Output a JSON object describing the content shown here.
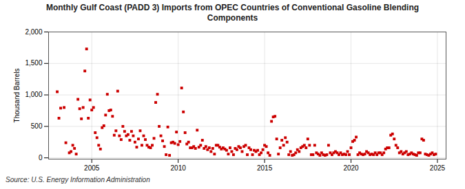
{
  "chart_data": {
    "type": "scatter",
    "title": "Monthly Gulf Coast (PADD 3) Imports from OPEC Countries of Conventional Gasoline Blending\nComponents",
    "ylabel": "Thousand Barrels",
    "source": "Source: U.S. Energy Information Administration",
    "color": "#cc0000",
    "marker": "square",
    "grid": true,
    "xlim": [
      2002.5,
      2025.5
    ],
    "ylim": [
      -20,
      2000
    ],
    "xticks": [
      2005,
      2010,
      2015,
      2020,
      2025
    ],
    "yticks": [
      0,
      500,
      {
        "value": 1000,
        "label": "1,000"
      },
      {
        "value": 1500,
        "label": "1,500"
      },
      {
        "value": 2000,
        "label": "2,000"
      }
    ],
    "x": [
      2003.0,
      2003.1,
      2003.2,
      2003.4,
      2003.5,
      2003.7,
      2003.8,
      2003.9,
      2004.0,
      2004.1,
      2004.2,
      2004.3,
      2004.4,
      2004.5,
      2004.6,
      2004.7,
      2004.8,
      2004.9,
      2005.0,
      2005.1,
      2005.2,
      2005.3,
      2005.4,
      2005.5,
      2005.6,
      2005.7,
      2005.8,
      2005.9,
      2006.0,
      2006.1,
      2006.2,
      2006.3,
      2006.4,
      2006.5,
      2006.6,
      2006.7,
      2006.8,
      2006.9,
      2007.0,
      2007.1,
      2007.2,
      2007.3,
      2007.4,
      2007.5,
      2007.6,
      2007.7,
      2007.8,
      2007.9,
      2008.0,
      2008.1,
      2008.2,
      2008.3,
      2008.4,
      2008.5,
      2008.6,
      2008.7,
      2008.8,
      2008.9,
      2009.0,
      2009.1,
      2009.2,
      2009.3,
      2009.4,
      2009.5,
      2009.6,
      2009.7,
      2009.8,
      2009.9,
      2010.0,
      2010.1,
      2010.2,
      2010.3,
      2010.4,
      2010.5,
      2010.6,
      2010.7,
      2010.8,
      2010.9,
      2011.0,
      2011.1,
      2011.2,
      2011.3,
      2011.4,
      2011.5,
      2011.6,
      2011.7,
      2011.8,
      2011.9,
      2012.0,
      2012.1,
      2012.2,
      2012.3,
      2012.4,
      2012.5,
      2012.6,
      2012.7,
      2012.8,
      2012.9,
      2013.0,
      2013.1,
      2013.2,
      2013.3,
      2013.4,
      2013.5,
      2013.6,
      2013.7,
      2013.8,
      2013.9,
      2014.0,
      2014.1,
      2014.2,
      2014.3,
      2014.4,
      2014.5,
      2014.6,
      2014.7,
      2014.8,
      2014.9,
      2015.0,
      2015.1,
      2015.2,
      2015.3,
      2015.4,
      2015.5,
      2015.6,
      2015.7,
      2015.8,
      2015.9,
      2016.0,
      2016.1,
      2016.2,
      2016.3,
      2016.4,
      2016.5,
      2016.6,
      2016.7,
      2016.8,
      2016.9,
      2017.0,
      2017.1,
      2017.2,
      2017.3,
      2017.4,
      2017.5,
      2017.6,
      2017.7,
      2017.8,
      2017.9,
      2018.0,
      2018.1,
      2018.2,
      2018.3,
      2018.4,
      2018.5,
      2018.6,
      2018.7,
      2018.8,
      2018.9,
      2019.0,
      2019.1,
      2019.2,
      2019.3,
      2019.4,
      2019.5,
      2019.6,
      2019.7,
      2019.8,
      2019.9,
      2020.0,
      2020.1,
      2020.2,
      2020.3,
      2020.4,
      2020.5,
      2020.6,
      2020.7,
      2020.8,
      2020.9,
      2021.0,
      2021.1,
      2021.2,
      2021.3,
      2021.4,
      2021.5,
      2021.6,
      2021.7,
      2021.8,
      2021.9,
      2022.0,
      2022.1,
      2022.2,
      2022.3,
      2022.4,
      2022.5,
      2022.6,
      2022.7,
      2022.8,
      2022.9,
      2023.0,
      2023.1,
      2023.2,
      2023.3,
      2023.4,
      2023.5,
      2023.6,
      2023.7,
      2023.8,
      2023.9,
      2024.0,
      2024.1,
      2024.2,
      2024.3,
      2024.4,
      2024.5,
      2024.6,
      2024.7,
      2024.8,
      2024.9
    ],
    "values": [
      1050,
      630,
      790,
      800,
      240,
      80,
      100,
      200,
      150,
      60,
      930,
      780,
      620,
      800,
      1380,
      1730,
      630,
      920,
      760,
      800,
      400,
      320,
      200,
      140,
      480,
      510,
      680,
      1010,
      750,
      760,
      660,
      360,
      430,
      1060,
      350,
      290,
      500,
      420,
      350,
      370,
      280,
      420,
      350,
      250,
      170,
      300,
      430,
      200,
      350,
      290,
      200,
      170,
      160,
      200,
      310,
      880,
      1010,
      500,
      350,
      270,
      180,
      50,
      490,
      40,
      240,
      250,
      230,
      410,
      210,
      260,
      1110,
      730,
      400,
      220,
      250,
      160,
      160,
      180,
      150,
      440,
      170,
      200,
      280,
      150,
      180,
      130,
      160,
      100,
      150,
      60,
      200,
      200,
      170,
      140,
      160,
      140,
      120,
      60,
      160,
      100,
      50,
      150,
      130,
      180,
      160,
      100,
      180,
      200,
      50,
      160,
      130,
      50,
      120,
      100,
      120,
      50,
      80,
      130,
      200,
      180,
      80,
      40,
      580,
      650,
      660,
      300,
      60,
      160,
      280,
      200,
      320,
      250,
      50,
      100,
      40,
      50,
      80,
      130,
      100,
      160,
      180,
      200,
      160,
      300,
      200,
      50,
      50,
      200,
      80,
      60,
      40,
      80,
      50,
      40,
      50,
      200,
      80,
      50,
      80,
      100,
      80,
      50,
      80,
      50,
      60,
      50,
      100,
      50,
      160,
      260,
      280,
      330,
      50,
      80,
      60,
      50,
      60,
      100,
      80,
      50,
      60,
      50,
      80,
      50,
      80,
      80,
      50,
      80,
      140,
      160,
      160,
      360,
      380,
      300,
      200,
      160,
      80,
      100,
      60,
      80,
      100,
      50,
      60,
      80,
      60,
      50,
      40,
      80,
      80,
      300,
      280,
      60,
      50,
      40,
      60,
      80,
      50,
      60
    ]
  }
}
